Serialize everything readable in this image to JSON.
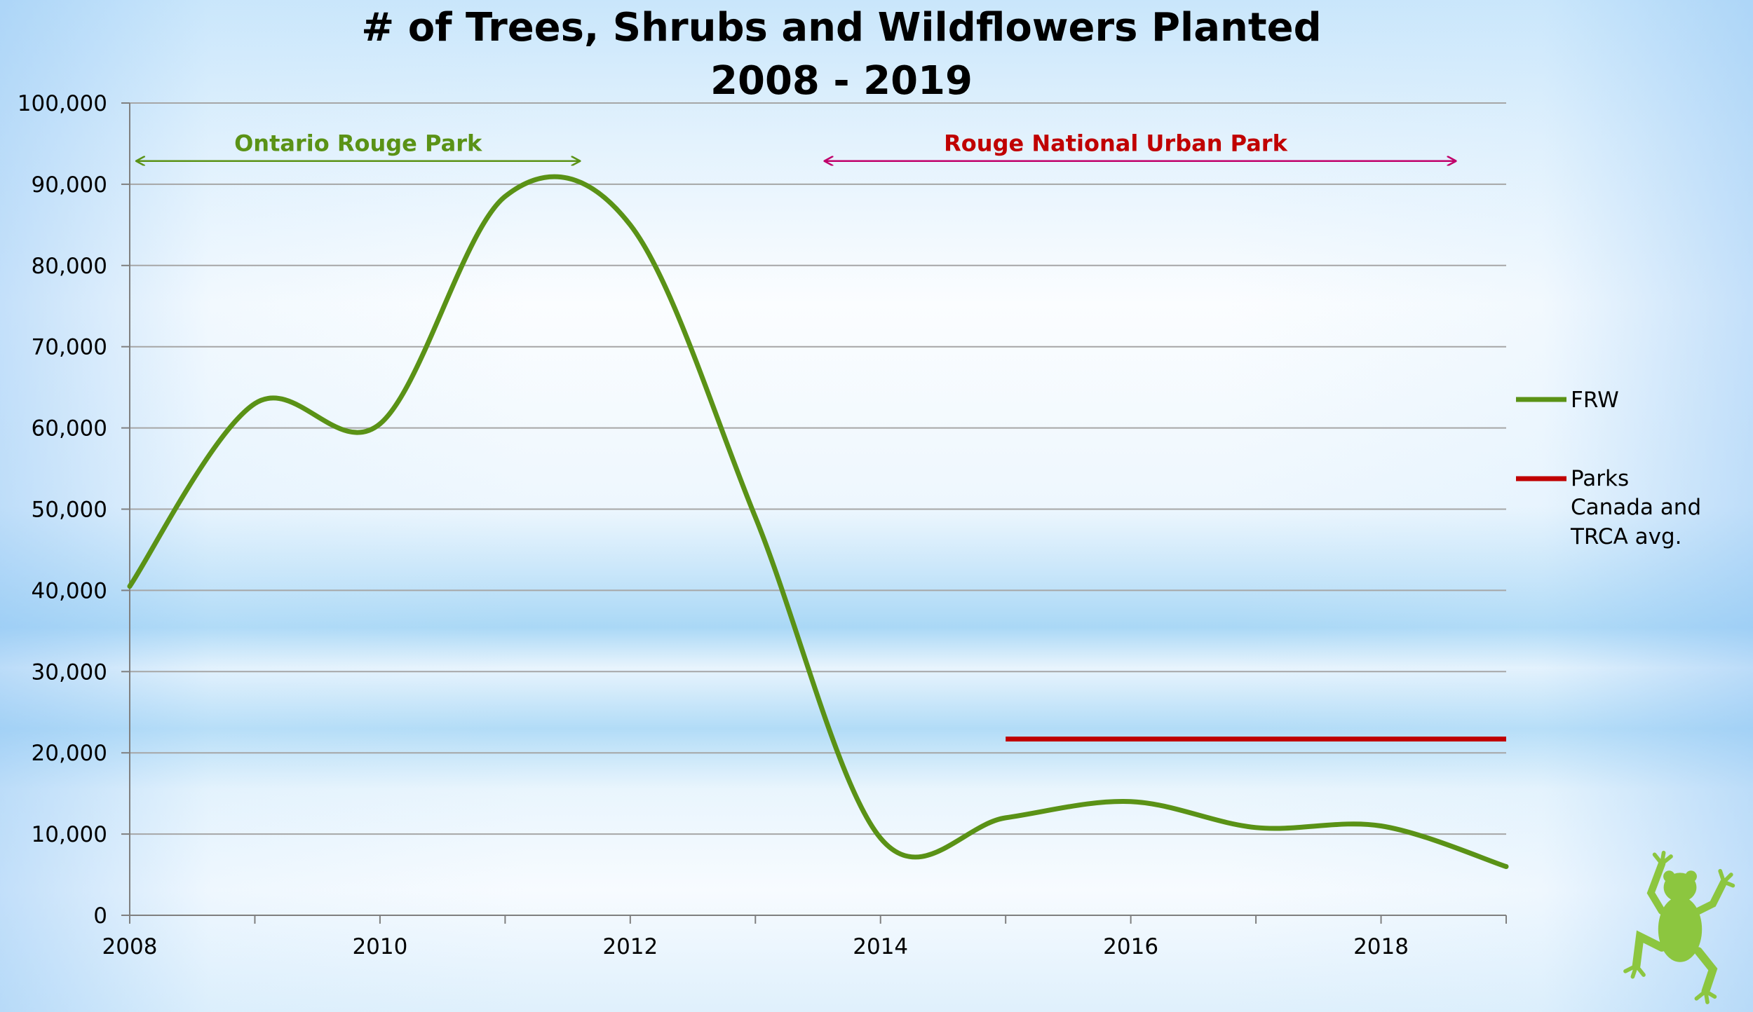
{
  "chart_data": {
    "type": "line",
    "title_lines": [
      "# of Trees, Shrubs and Wildflowers Planted",
      "2008 - 2019"
    ],
    "xlim": [
      2008,
      2019
    ],
    "ylim": [
      0,
      100000
    ],
    "x_ticks": [
      2008,
      2010,
      2012,
      2014,
      2016,
      2018
    ],
    "y_ticks": [
      0,
      10000,
      20000,
      30000,
      40000,
      50000,
      60000,
      70000,
      80000,
      90000,
      100000
    ],
    "grid": true,
    "series": [
      {
        "name": "FRW",
        "color": "#5a9216",
        "x": [
          2008,
          2009,
          2010,
          2011,
          2012,
          2013,
          2014,
          2015,
          2016,
          2017,
          2018,
          2019
        ],
        "y": [
          40500,
          63000,
          60500,
          88500,
          85000,
          49000,
          9500,
          12000,
          14000,
          10800,
          11000,
          6000
        ]
      },
      {
        "name_lines": [
          "Parks",
          "Canada and",
          "TRCA avg."
        ],
        "color": "#c00000",
        "x": [
          2015,
          2019
        ],
        "y": [
          21700,
          21700
        ]
      }
    ],
    "legend_position": "right",
    "annotations": [
      {
        "text": "Ontario Rouge Park",
        "color": "#5a9216",
        "x_start": 2008.05,
        "x_end": 2011.6,
        "y": 94500
      },
      {
        "text": "Rouge National Urban Park",
        "color": "#c0006a",
        "text_color": "#c00000",
        "x_start": 2013.55,
        "x_end": 2018.6,
        "y": 94500
      }
    ]
  },
  "icons": {
    "logo": "frog-icon",
    "logo_color": "#8cc63f"
  }
}
